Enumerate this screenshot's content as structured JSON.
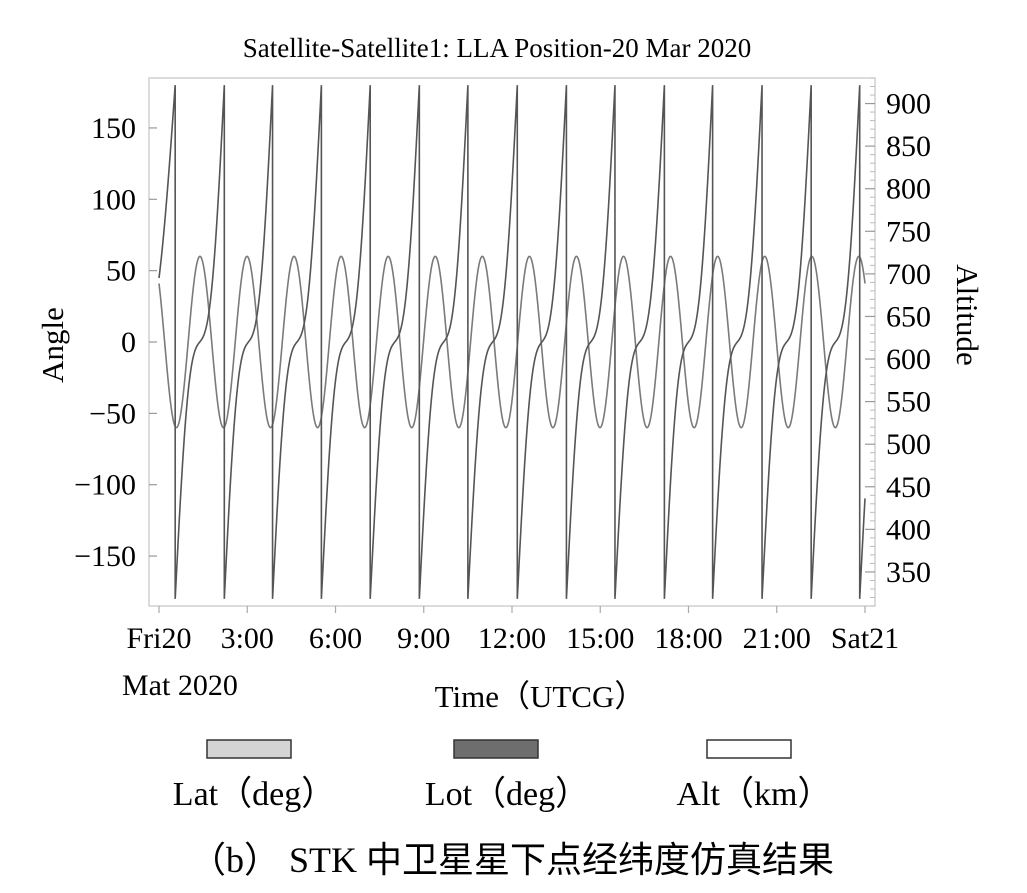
{
  "chart_data": {
    "type": "line",
    "title": "Satellite-Satellite1: LLA Position-20 Mar 2020",
    "xlabel": "Time（UTCG）",
    "ylabel_left": "Angle",
    "ylabel_right": "Altitude",
    "x_unit": "hours (UTCG) from Fri 20 Mar 2020 00:00",
    "xlim": [
      0,
      24
    ],
    "ylim_left": [
      -185,
      185
    ],
    "ylim_right": [
      310,
      930
    ],
    "x_ticks": [
      {
        "value": 0,
        "label": "Fri20"
      },
      {
        "value": 3,
        "label": "3:00"
      },
      {
        "value": 6,
        "label": "6:00"
      },
      {
        "value": 9,
        "label": "9:00"
      },
      {
        "value": 12,
        "label": "12:00"
      },
      {
        "value": 15,
        "label": "15:00"
      },
      {
        "value": 18,
        "label": "18:00"
      },
      {
        "value": 21,
        "label": "21:00"
      },
      {
        "value": 24,
        "label": "Sat21"
      }
    ],
    "x_sublabel": "Mat 2020",
    "y_ticks_left": [
      150,
      100,
      50,
      0,
      -50,
      -100,
      -150
    ],
    "y_tick_labels_left": [
      "150",
      "100",
      "50",
      "0",
      "−50",
      "−100",
      "−150"
    ],
    "y_ticks_right": [
      900,
      850,
      800,
      750,
      700,
      650,
      600,
      550,
      500,
      450,
      400,
      350
    ],
    "series": [
      {
        "name": "Lat（deg）",
        "swatch": "#d4d4d4",
        "kind": "latitude",
        "amplitude_deg": 60,
        "orbit_period_h": 1.6,
        "value_at_0h": 41
      },
      {
        "name": "Lot（deg）",
        "swatch": "#6e6e6e",
        "kind": "longitude",
        "range_deg": [
          -180,
          180
        ],
        "wrap_times_h": [
          0.55,
          2.22,
          3.86,
          5.52,
          7.18,
          8.85,
          10.5,
          12.18,
          13.85,
          15.5,
          17.18,
          18.82,
          20.5,
          22.17,
          23.82
        ],
        "value_at_0h": 95
      },
      {
        "name": "Alt（km）",
        "swatch": "#ffffff"
      }
    ],
    "legend_position": "bottom",
    "grid": false
  },
  "caption": "（b） STK 中卫星星下点经纬度仿真结果"
}
